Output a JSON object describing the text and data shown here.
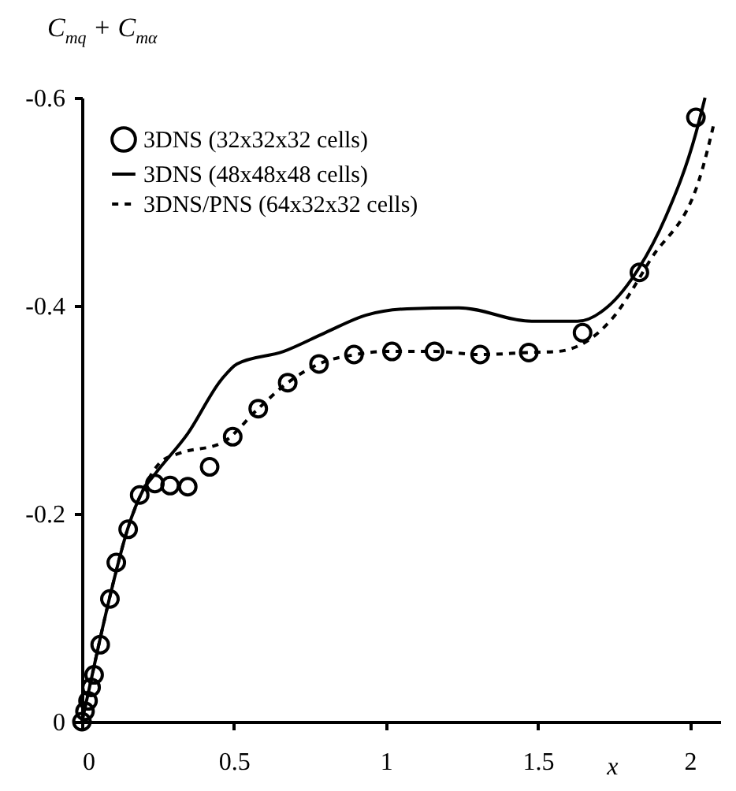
{
  "chart_data": {
    "type": "line",
    "xlabel": "x",
    "ylabel": "C$_{mq}$ + C$_{mα}$",
    "xlim": [
      0,
      2.1
    ],
    "xticks": [
      0,
      0.5,
      1,
      1.5,
      2
    ],
    "ylim": [
      0,
      -0.6
    ],
    "yticks": [
      0,
      -0.2,
      -0.4,
      -0.6
    ],
    "grid": false,
    "legend": "top left",
    "series": [
      {
        "name": "3DNS (32x32x32 cells)",
        "type": "scatter",
        "marker": "circle",
        "color": "#000000",
        "x": [
          0,
          0.01,
          0.02,
          0.03,
          0.04,
          0.06,
          0.092,
          0.113,
          0.152,
          0.19,
          0.24,
          0.29,
          0.348,
          0.42,
          0.496,
          0.58,
          0.677,
          0.78,
          0.895,
          1.02,
          1.16,
          1.31,
          1.47,
          1.647,
          1.834,
          2.02
        ],
        "values": [
          0,
          -0.01,
          -0.02,
          -0.033,
          -0.045,
          -0.074,
          -0.118,
          -0.153,
          -0.185,
          -0.218,
          -0.229,
          -0.227,
          -0.226,
          -0.245,
          -0.274,
          -0.301,
          -0.326,
          -0.344,
          -0.353,
          -0.356,
          -0.356,
          -0.353,
          -0.355,
          -0.374,
          -0.432,
          -0.581
        ]
      },
      {
        "name": "3DNS (48x48x48 cells)",
        "line_style": "solid",
        "color": "#000000",
        "x": [
          0,
          0.03,
          0.06,
          0.1,
          0.15,
          0.2,
          0.24,
          0.348,
          0.459,
          0.51,
          0.663,
          0.8,
          0.936,
          1.07,
          1.24,
          1.48,
          1.63,
          1.73,
          1.83,
          1.92,
          2.02,
          2.05
        ],
        "values": [
          0,
          -0.04,
          -0.08,
          -0.13,
          -0.185,
          -0.222,
          -0.238,
          -0.277,
          -0.329,
          -0.344,
          -0.356,
          -0.374,
          -0.391,
          -0.397,
          -0.398,
          -0.385,
          -0.385,
          -0.399,
          -0.435,
          -0.485,
          -0.566,
          -0.6
        ]
      },
      {
        "name": "3DNS/PNS (64x32x32 cells)",
        "line_style": "dashed",
        "color": "#000000",
        "x": [
          0,
          0.03,
          0.06,
          0.1,
          0.15,
          0.2,
          0.26,
          0.32,
          0.46,
          0.58,
          0.677,
          0.78,
          0.9,
          1.0,
          1.16,
          1.31,
          1.47,
          1.565,
          1.74,
          1.87,
          2.04,
          2.08
        ],
        "values": [
          0,
          -0.04,
          -0.08,
          -0.13,
          -0.185,
          -0.222,
          -0.25,
          -0.258,
          -0.268,
          -0.301,
          -0.326,
          -0.344,
          -0.353,
          -0.356,
          -0.356,
          -0.353,
          -0.355,
          -0.356,
          -0.386,
          -0.444,
          -0.53,
          -0.576
        ]
      }
    ]
  }
}
